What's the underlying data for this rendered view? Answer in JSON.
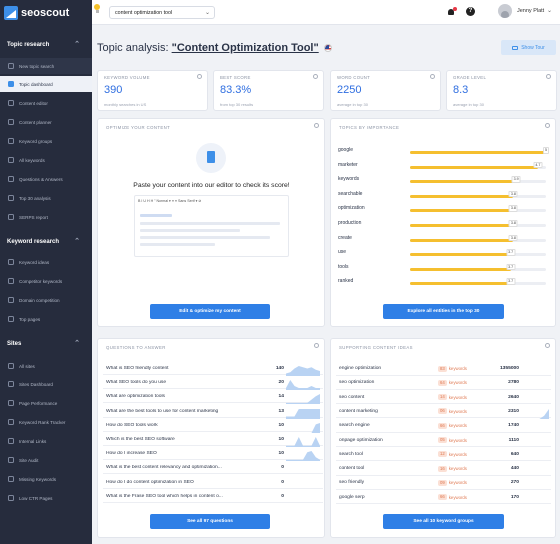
{
  "brand": {
    "name": "seoscout"
  },
  "sidebar": {
    "sections": [
      {
        "label": "Topic research",
        "items": [
          "New topic search",
          "Topic dashboard",
          "Content editor",
          "Content planner",
          "Keyword groups",
          "All keywords",
          "Questions & Answers",
          "Top 30 analysis",
          "SERPS report"
        ]
      },
      {
        "label": "Keyword research",
        "items": [
          "Keyword ideas",
          "Competitor keywords",
          "Domain competition",
          "Top pages"
        ]
      },
      {
        "label": "Sites",
        "items": [
          "All sites",
          "Sites Dashboard",
          "Page Performance",
          "Keyword Rank Tracker",
          "Internal Links",
          "Site Audit",
          "Missing Keywords",
          "Low CTR Pages"
        ]
      }
    ]
  },
  "topbar": {
    "topic_select": "content optimization tool",
    "user_name": "Jenny Platt"
  },
  "page": {
    "title_prefix": "Topic analysis:",
    "title_keyword": "\"Content Optimization Tool\"",
    "tour_label": "Show Tour"
  },
  "stats": [
    {
      "label": "KEYWORD VOLUME",
      "value": "390",
      "sub": "monthly searches in US"
    },
    {
      "label": "BEST SCORE",
      "value": "83.3%",
      "sub": "from top 30 results"
    },
    {
      "label": "WORD COUNT",
      "value": "2250",
      "sub": "average in top 30"
    },
    {
      "label": "GRADE LEVEL",
      "value": "8.3",
      "sub": "average in top 30"
    }
  ],
  "optimize": {
    "header": "OPTIMIZE YOUR CONTENT",
    "paste_text": "Paste your content into our editor to check its score!",
    "toolbar_text": "B  I  U  H  H   \"  Normal  ▾   ≡  ≡   Sans Serif  ▾   ⊘",
    "button": "Edit & optimize my content"
  },
  "topics": {
    "header": "TOPICS BY IMPORTANCE",
    "button": "Explore all entities in the top 30",
    "items": [
      {
        "name": "google",
        "score": 5
      },
      {
        "name": "marketer",
        "score": 4.7
      },
      {
        "name": "keywords",
        "score": 3.9
      },
      {
        "name": "searchable",
        "score": 3.8
      },
      {
        "name": "optimization",
        "score": 3.8
      },
      {
        "name": "production",
        "score": 3.8
      },
      {
        "name": "create",
        "score": 3.8
      },
      {
        "name": "use",
        "score": 3.7
      },
      {
        "name": "tools",
        "score": 3.7
      },
      {
        "name": "ranked",
        "score": 3.7
      }
    ],
    "max": 5
  },
  "questions": {
    "header": "QUESTIONS TO ANSWER",
    "button": "See all 97 questions",
    "items": [
      {
        "q": "What is SEO friendly content",
        "n": "140",
        "trend": [
          2,
          3,
          6,
          8,
          7,
          6,
          7,
          5,
          4
        ]
      },
      {
        "q": "What SEO tools do you use",
        "n": "20",
        "trend": [
          1,
          5,
          2,
          1,
          1,
          1,
          2,
          1,
          1
        ]
      },
      {
        "q": "What are optimization tools",
        "n": "14",
        "trend": [
          1,
          1,
          1,
          1,
          1,
          1,
          4,
          7,
          9
        ]
      },
      {
        "q": "What are the best tools to use for content marketing",
        "n": "13",
        "trend": [
          2,
          2,
          2,
          8,
          8,
          8,
          8,
          8,
          8
        ]
      },
      {
        "q": "How do SEO tools work",
        "n": "10",
        "trend": [
          0,
          0,
          0,
          0,
          0,
          0,
          0,
          6,
          7
        ]
      },
      {
        "q": "Which is the best SEO software",
        "n": "10",
        "trend": [
          1,
          1,
          1,
          8,
          1,
          1,
          1,
          8,
          1
        ]
      },
      {
        "q": "How do I increase SEO",
        "n": "10",
        "trend": [
          1,
          1,
          1,
          1,
          1,
          7,
          8,
          3,
          1
        ]
      },
      {
        "q": "What is the best content relevancy and optimization...",
        "n": "0",
        "trend": []
      },
      {
        "q": "How do I do content optimization in SEO",
        "n": "0",
        "trend": []
      },
      {
        "q": "What is the Frase SEO tool which helps in content o...",
        "n": "0",
        "trend": []
      }
    ]
  },
  "supporting": {
    "header": "SUPPORTING CONTENT IDEAS",
    "button": "See all 10 keyword groups",
    "keywords_word": "keywords",
    "items": [
      {
        "k": "engine optimization",
        "count": "83",
        "vol": "1355000",
        "trend": [
          0,
          0,
          0,
          0,
          0,
          0
        ]
      },
      {
        "k": "seo optimization",
        "count": "64",
        "vol": "2780",
        "trend": [
          0,
          0,
          0,
          0,
          0,
          0
        ]
      },
      {
        "k": "seo content",
        "count": "14",
        "vol": "2640",
        "trend": [
          0,
          0,
          0,
          0,
          0,
          0
        ]
      },
      {
        "k": "content marketing",
        "count": "06",
        "vol": "2310",
        "trend": [
          0,
          0,
          0,
          0,
          2,
          6
        ]
      },
      {
        "k": "search engine",
        "count": "66",
        "vol": "1740",
        "trend": [
          0,
          0,
          0,
          0,
          0,
          0
        ]
      },
      {
        "k": "onpage optimization",
        "count": "05",
        "vol": "1110",
        "trend": [
          0,
          0,
          0,
          0,
          0,
          0
        ]
      },
      {
        "k": "search tool",
        "count": "12",
        "vol": "640",
        "trend": [
          0,
          0,
          0,
          0,
          0,
          0
        ]
      },
      {
        "k": "content tool",
        "count": "16",
        "vol": "440",
        "trend": [
          0,
          0,
          0,
          0,
          0,
          0
        ]
      },
      {
        "k": "seo friendly",
        "count": "09",
        "vol": "270",
        "trend": [
          0,
          0,
          0,
          0,
          0,
          0
        ]
      },
      {
        "k": "google serp",
        "count": "66",
        "vol": "170",
        "trend": [
          0,
          0,
          0,
          0,
          0,
          0
        ]
      }
    ]
  },
  "colors": {
    "accent": "#2f7fe6",
    "bar": "#f5bf2f",
    "sidebar": "#262c3d"
  }
}
